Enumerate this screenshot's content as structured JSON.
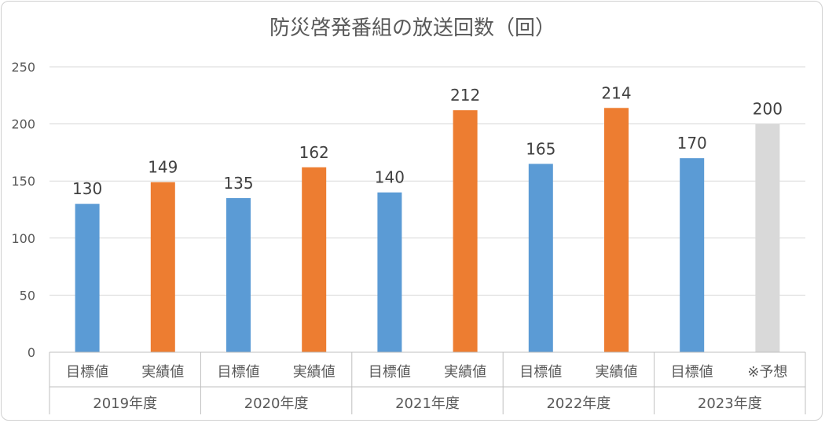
{
  "chart_data": {
    "type": "bar",
    "title": "防災啓発番組の放送回数（回）",
    "ylim": [
      0,
      250
    ],
    "yticks": [
      0,
      50,
      100,
      150,
      200,
      250
    ],
    "grid": true,
    "legend": "none",
    "groups": [
      {
        "label": "2019年度",
        "bars": [
          {
            "label": "目標値",
            "value": 130,
            "color": "#5b9bd5"
          },
          {
            "label": "実績値",
            "value": 149,
            "color": "#ed7d31"
          }
        ]
      },
      {
        "label": "2020年度",
        "bars": [
          {
            "label": "目標値",
            "value": 135,
            "color": "#5b9bd5"
          },
          {
            "label": "実績値",
            "value": 162,
            "color": "#ed7d31"
          }
        ]
      },
      {
        "label": "2021年度",
        "bars": [
          {
            "label": "目標値",
            "value": 140,
            "color": "#5b9bd5"
          },
          {
            "label": "実績値",
            "value": 212,
            "color": "#ed7d31"
          }
        ]
      },
      {
        "label": "2022年度",
        "bars": [
          {
            "label": "目標値",
            "value": 165,
            "color": "#5b9bd5"
          },
          {
            "label": "実績値",
            "value": 214,
            "color": "#ed7d31"
          }
        ]
      },
      {
        "label": "2023年度",
        "bars": [
          {
            "label": "目標値",
            "value": 170,
            "color": "#5b9bd5"
          },
          {
            "label": "※予想",
            "value": 200,
            "color": "#d9d9d9"
          }
        ]
      }
    ]
  }
}
